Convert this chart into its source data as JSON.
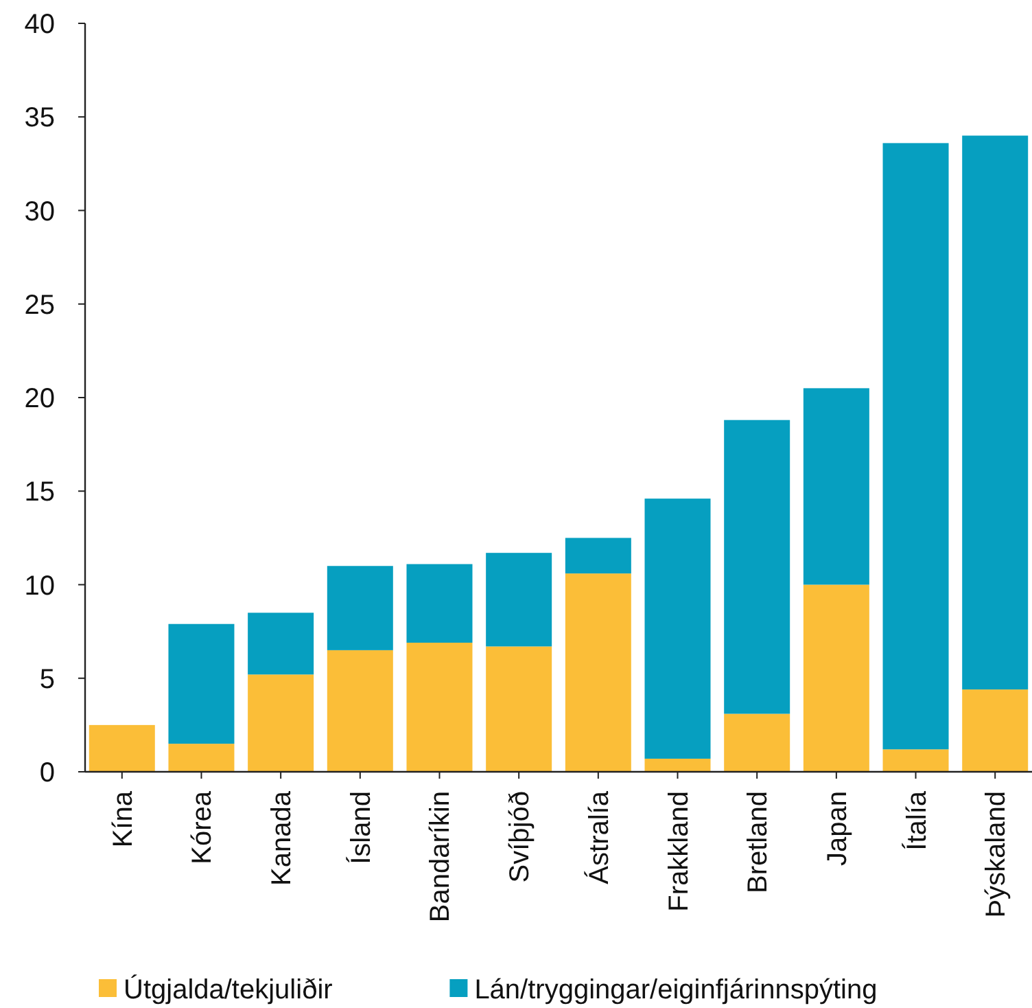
{
  "chart_data": {
    "type": "bar",
    "stacked": true,
    "categories": [
      "Kína",
      "Kórea",
      "Kanada",
      "Ísland",
      "Bandaríkin",
      "Svíþjóð",
      "Ástralía",
      "Frakkland",
      "Bretland",
      "Japan",
      "Ítalía",
      "Þýskaland"
    ],
    "series": [
      {
        "name": "Útgjalda/tekjuliðir",
        "color": "#fbbe38",
        "values": [
          2.5,
          1.5,
          5.2,
          6.5,
          6.9,
          6.7,
          10.6,
          0.7,
          3.1,
          10.0,
          1.2,
          4.4
        ]
      },
      {
        "name": "Lán/tryggingar/eiginfjárinnspýting",
        "color": "#069fc0",
        "values": [
          null,
          6.4,
          3.3,
          4.5,
          4.2,
          5.0,
          1.9,
          13.9,
          15.7,
          10.5,
          32.4,
          29.6
        ]
      }
    ],
    "ylim": [
      0,
      40
    ],
    "yticks": [
      0,
      5,
      10,
      15,
      20,
      25,
      30,
      35,
      40
    ],
    "grid": false,
    "legend": "bottom"
  }
}
